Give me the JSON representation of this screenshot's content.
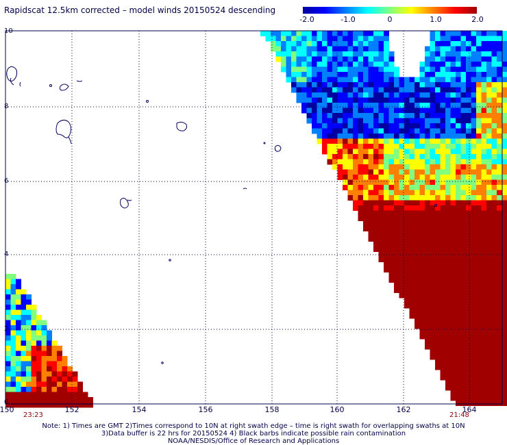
{
  "title": "Rapidscat 12.5km corrected – model winds 20150524 descending",
  "colorbar": {
    "labels": [
      "-2.0",
      "-1.0",
      "0",
      "1.0",
      "2.0"
    ],
    "stops": [
      "#0000a0",
      "#0000ff",
      "#0080ff",
      "#00ffff",
      "#80ff80",
      "#ffff00",
      "#ff8000",
      "#ff0000",
      "#a00000"
    ]
  },
  "axes": {
    "x_ticks": [
      "150",
      "152",
      "154",
      "156",
      "158",
      "160",
      "162",
      "164"
    ],
    "y_ticks": [
      "0",
      "2",
      "4",
      "6",
      "8",
      "10"
    ]
  },
  "times": {
    "left": "23:23",
    "right": "21:48"
  },
  "notes": [
    "Note: 1) Times are GMT 2)Times correspond to 10N at right swath edge – time is right swath for overlapping swaths at 10N",
    "3)Data buffer is 22 hrs for 20150524 4) Black barbs indicate possible rain contamination",
    "NOAA/NESDIS/Office of Research and Applications"
  ]
}
